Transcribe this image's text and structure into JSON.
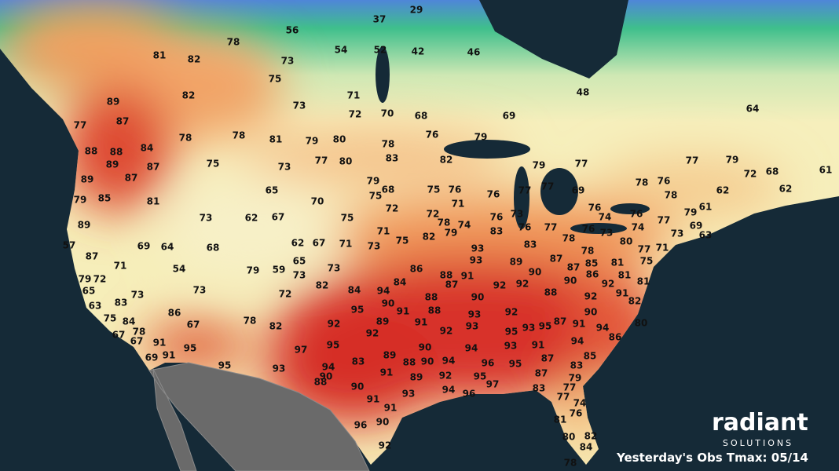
{
  "map": {
    "title": "Yesterday's Obs Tmax: 05/14",
    "brand": "radiant",
    "brand_sub": "SOLUTIONS",
    "observations": [
      37,
      29,
      56,
      78,
      54,
      52,
      42,
      46,
      81,
      82,
      73,
      75,
      82,
      89,
      73,
      71,
      48,
      72,
      70,
      68,
      69,
      64,
      87,
      77,
      76,
      79,
      78,
      78,
      81,
      79,
      80,
      78,
      88,
      88,
      84,
      83,
      82,
      77,
      80,
      77,
      79,
      89,
      87,
      75,
      73,
      79,
      77,
      72,
      68,
      61,
      89,
      87,
      79,
      78,
      76,
      62,
      62,
      65,
      68,
      75,
      76,
      77,
      77,
      69,
      78,
      75,
      76,
      79,
      85,
      81,
      70,
      71,
      76,
      76,
      61,
      72,
      72,
      73,
      74,
      79,
      73,
      62,
      67,
      75,
      76,
      78,
      74,
      77,
      69,
      89,
      71,
      79,
      83,
      76,
      77,
      76,
      73,
      74,
      63,
      73,
      82,
      75,
      80,
      57,
      69,
      64,
      68,
      62,
      67,
      71,
      73,
      78,
      93,
      83,
      77,
      71,
      75,
      87,
      71,
      54,
      65,
      73,
      93,
      89,
      87,
      78,
      85,
      81,
      79,
      59,
      73,
      86,
      88,
      91,
      90,
      87,
      86,
      81,
      81,
      79,
      72,
      65,
      82,
      87,
      92,
      92,
      90,
      92,
      91,
      84,
      94,
      84,
      73,
      73,
      72,
      88,
      90,
      88,
      92,
      82,
      83,
      63,
      95,
      90,
      91,
      88,
      93,
      92,
      90,
      80,
      86,
      75,
      84,
      67,
      78,
      82,
      92,
      89,
      91,
      93,
      93,
      87,
      91,
      94,
      78,
      67,
      67,
      92,
      95,
      92,
      95,
      91,
      95,
      90,
      94,
      93,
      91,
      94,
      86,
      95,
      97,
      69,
      91,
      83,
      89,
      88,
      90,
      94,
      96,
      95,
      87,
      85,
      95,
      93,
      94,
      91,
      92,
      83,
      90,
      89,
      87,
      79,
      88,
      90,
      95,
      97,
      83,
      77,
      93,
      94,
      96,
      91,
      77,
      74,
      91,
      76,
      81,
      90,
      96,
      80,
      82,
      84,
      92,
      78
    ]
  }
}
